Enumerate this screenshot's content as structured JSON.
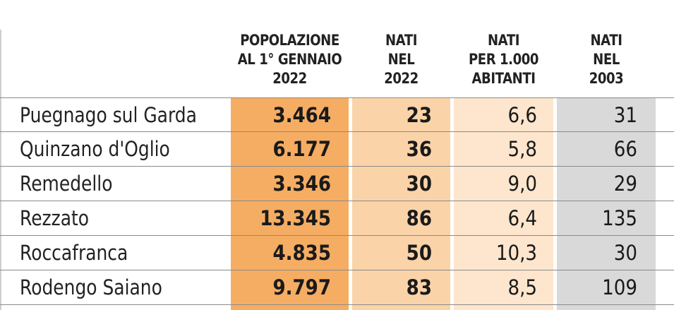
{
  "headers": {
    "popolazione": [
      "POPOLAZIONE",
      "AL 1° GENNAIO",
      "2022"
    ],
    "nati_2022": [
      "NATI",
      "NEL",
      "2022"
    ],
    "nati_per_1000": [
      "NATI",
      "PER 1.000",
      "ABITANTI"
    ],
    "nati_2003": [
      "NATI",
      "NEL",
      "2003"
    ]
  },
  "colors": {
    "popolazione_bg": "#f5ad63",
    "nati_2022_bg": "#fbd3a8",
    "nati_per_1000_bg": "#fde6cd",
    "nati_2003_bg": "#d9d9da"
  },
  "rows": [
    {
      "comune": "Puegnago sul Garda",
      "popolazione": "3.464",
      "nati_2022": "23",
      "nati_per_1000": "6,6",
      "nati_2003": "31"
    },
    {
      "comune": "Quinzano d'Oglio",
      "popolazione": "6.177",
      "nati_2022": "36",
      "nati_per_1000": "5,8",
      "nati_2003": "66"
    },
    {
      "comune": "Remedello",
      "popolazione": "3.346",
      "nati_2022": "30",
      "nati_per_1000": "9,0",
      "nati_2003": "29"
    },
    {
      "comune": "Rezzato",
      "popolazione": "13.345",
      "nati_2022": "86",
      "nati_per_1000": "6,4",
      "nati_2003": "135"
    },
    {
      "comune": "Roccafranca",
      "popolazione": "4.835",
      "nati_2022": "50",
      "nati_per_1000": "10,3",
      "nati_2003": "30"
    },
    {
      "comune": "Rodengo Saiano",
      "popolazione": "9.797",
      "nati_2022": "83",
      "nati_per_1000": "8,5",
      "nati_2003": "109"
    }
  ]
}
